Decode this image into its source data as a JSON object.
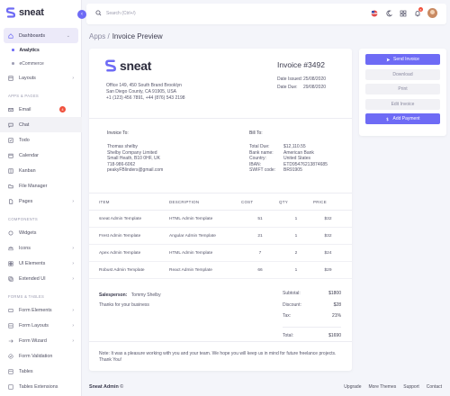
{
  "sidebar": {
    "brand": "sneat",
    "collapse_icon": "chevron-left-icon",
    "dashboards": "Dashboards",
    "analytics": "Analytics",
    "ecommerce": "eCommerce",
    "layouts": "Layouts",
    "section_apps": "APPS & PAGES",
    "email": "Email",
    "email_badge": "4",
    "chat": "Chat",
    "todo": "Todo",
    "calendar": "Calendar",
    "kanban": "Kanban",
    "file_manager": "File Manager",
    "pages": "Pages",
    "section_components": "COMPONENTS",
    "widgets": "Widgets",
    "icons": "Icons",
    "ui_elements": "UI Elements",
    "extended_ui": "Extended UI",
    "section_forms": "FORMS & TABLES",
    "form_elements": "Form Elements",
    "form_layouts": "Form Layouts",
    "form_wizard": "Form Wizard",
    "form_validation": "Form Validation",
    "tables": "Tables",
    "tables_extensions": "Tables Extensions"
  },
  "topbar": {
    "search_placeholder": "Search (Ctrl+/)",
    "notif_count": "5"
  },
  "breadcrumb": {
    "parent": "Apps /",
    "current": "Invoice Preview"
  },
  "invoice": {
    "brand": "sneat",
    "address_1": "Office 149, 450 South Brand Brooklyn",
    "address_2": "San Diego County, CA 91905, USA",
    "phone": "+1 (123) 456 7891, +44 (876) 543 2198",
    "number": "Invoice #3492",
    "issued_label": "Date Issued:",
    "issued": "25/08/2020",
    "due_label": "Date Due:",
    "due": "29/08/2020",
    "to_label": "Invoice To:",
    "to_name": "Thomas shelby",
    "to_company": "Shelby Company Limited",
    "to_address": "Small Heath, B10 0HF, UK",
    "to_phone": "718-986-6062",
    "to_email": "peakyFBlinders@gmail.com",
    "bill_label": "Bill To:",
    "bill": [
      {
        "k": "Total Due:",
        "v": "$12,110.55"
      },
      {
        "k": "Bank name:",
        "v": "American Bank"
      },
      {
        "k": "Country:",
        "v": "United States"
      },
      {
        "k": "IBAN:",
        "v": "ETD95476213874685"
      },
      {
        "k": "SWIFT code:",
        "v": "BR91905"
      }
    ],
    "columns": [
      "ITEM",
      "DESCRIPTION",
      "COST",
      "QTY",
      "PRICE"
    ],
    "items": [
      {
        "item": "sneat Admin Template",
        "desc": "HTML Admin Template",
        "cost": "51",
        "qty": "1",
        "price": "$32"
      },
      {
        "item": "Frest Admin Template",
        "desc": "Angular Admin Template",
        "cost": "21",
        "qty": "1",
        "price": "$32"
      },
      {
        "item": "Apex Admin Template",
        "desc": "HTML Admin Template",
        "cost": "7",
        "qty": "2",
        "price": "$24"
      },
      {
        "item": "Robust Admin Template",
        "desc": "React Admin Template",
        "cost": "66",
        "qty": "1",
        "price": "$29"
      }
    ],
    "salesperson_label": "Salesperson:",
    "salesperson": "Tommy Shelby",
    "thanks": "Thanks for your business",
    "subtotal_label": "Subtotal:",
    "subtotal": "$1800",
    "discount_label": "Discount:",
    "discount": "$28",
    "tax_label": "Tax:",
    "tax": "21%",
    "total_label": "Total:",
    "total": "$1690",
    "note": "Note: It was a pleasure working with you and your team. We hope you will keep us in mind for future freelance projects. Thank You!"
  },
  "actions": {
    "send": "Send Invoice",
    "download": "Download",
    "print": "Print",
    "edit": "Edit Invoice",
    "add_payment": "Add Payment"
  },
  "footer": {
    "brand": "Sneat Admin",
    "copy": "©",
    "links": [
      "Upgrade",
      "More Themes",
      "Support",
      "Contact"
    ]
  },
  "colors": {
    "accent": "#6e6bf5",
    "badge": "#f0513d"
  }
}
